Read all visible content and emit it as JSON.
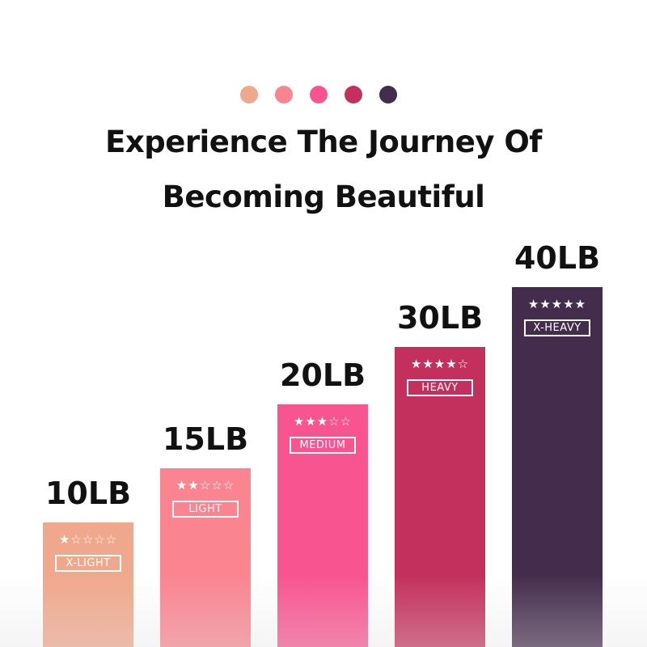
{
  "colors": [
    "#F0A88C",
    "#FA8490",
    "#F8548F",
    "#C4305D",
    "#432C4C"
  ],
  "title_line1": "Experience The Journey Of",
  "title_line2": "Becoming Beautiful",
  "bands": [
    {
      "weight": "10LB",
      "stars": "★☆☆☆☆",
      "level": "X-LIGHT",
      "rating": 1
    },
    {
      "weight": "15LB",
      "stars": "★★☆☆☆",
      "level": "LIGHT",
      "rating": 2
    },
    {
      "weight": "20LB",
      "stars": "★★★☆☆",
      "level": "MEDIUM",
      "rating": 3
    },
    {
      "weight": "30LB",
      "stars": "★★★★☆",
      "level": "HEAVY",
      "rating": 4
    },
    {
      "weight": "40LB",
      "stars": "★★★★★",
      "level": "X-HEAVY",
      "rating": 5
    }
  ]
}
